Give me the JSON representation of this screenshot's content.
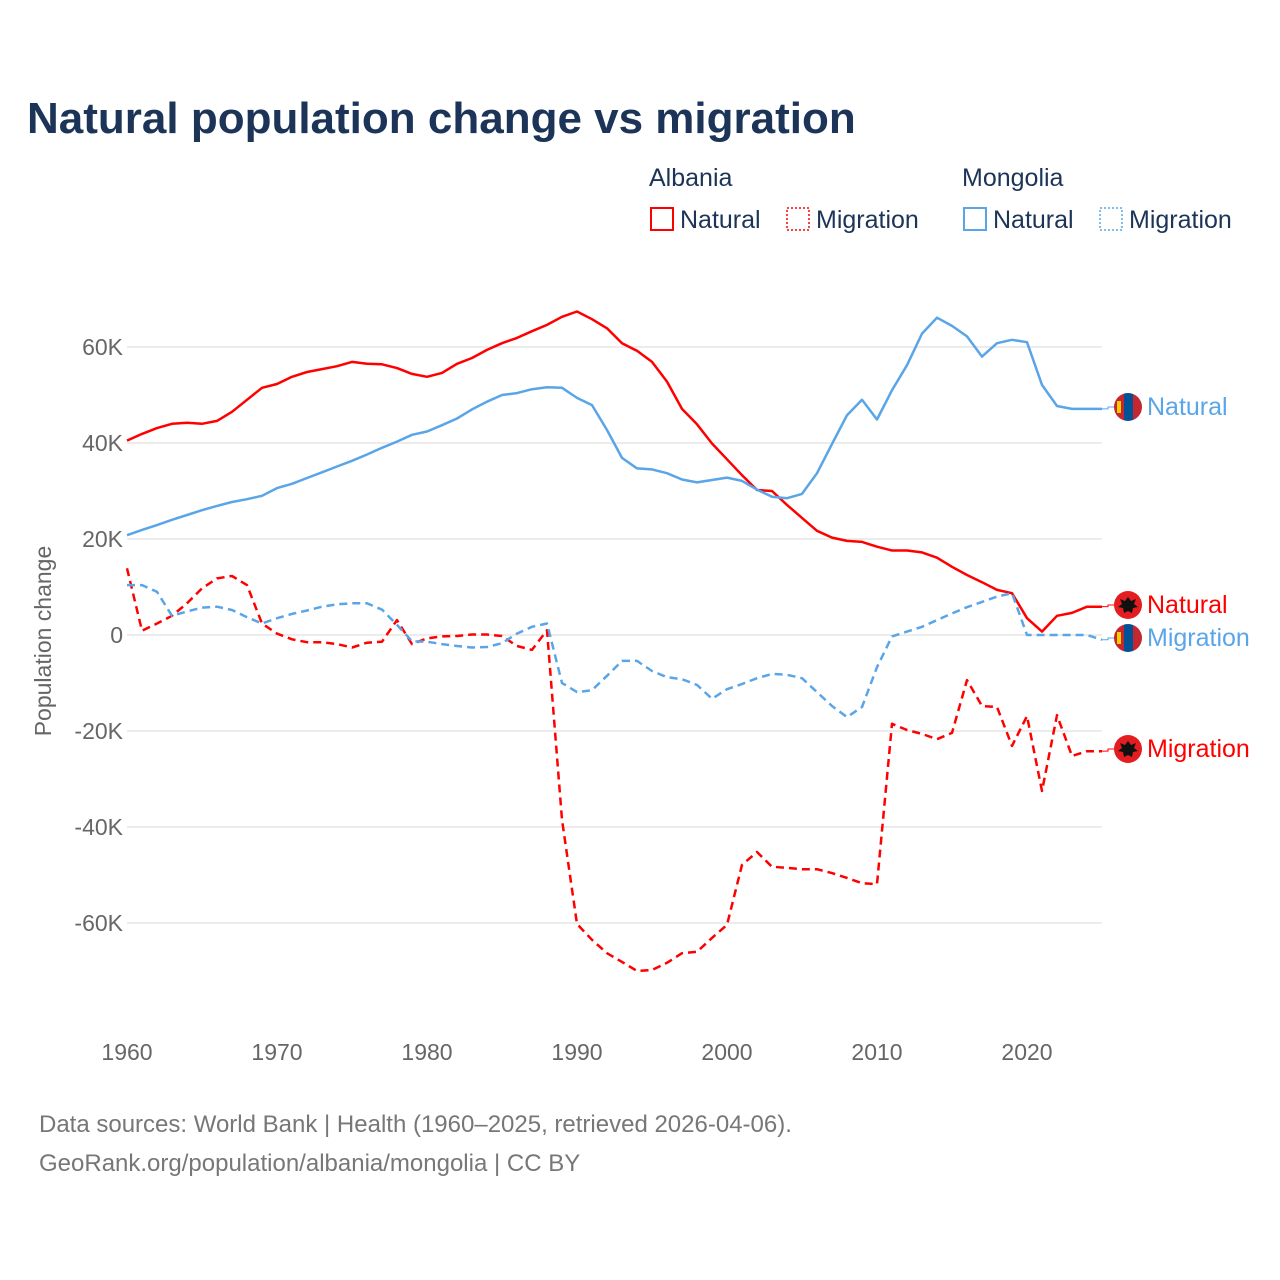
{
  "title": "Natural population change vs migration",
  "legend": {
    "groups": [
      {
        "country": "Albania",
        "natural": "Natural",
        "migration": "Migration",
        "color": "#ff0000"
      },
      {
        "country": "Mongolia",
        "natural": "Natural",
        "migration": "Migration",
        "color": "#5aa5e8"
      }
    ]
  },
  "footer": {
    "line1": "Data sources: World Bank | Health (1960–2025, retrieved 2026-04-06).",
    "line2": "GeoRank.org/population/albania/mongolia | CC BY"
  },
  "chart_data": {
    "type": "line",
    "title": "Natural population change vs migration",
    "xlabel": "",
    "ylabel": "Population change",
    "xlim": [
      1960,
      2025
    ],
    "ylim": [
      -80000,
      75000
    ],
    "x_ticks": [
      "1960",
      "1970",
      "1980",
      "1990",
      "2000",
      "2010",
      "2020"
    ],
    "y_ticks": [
      {
        "value": 60000,
        "label": "60K"
      },
      {
        "value": 40000,
        "label": "40K"
      },
      {
        "value": 20000,
        "label": "20K"
      },
      {
        "value": 0,
        "label": "0"
      },
      {
        "value": -20000,
        "label": "-20K"
      },
      {
        "value": -40000,
        "label": "-40K"
      },
      {
        "value": -60000,
        "label": "-60K"
      }
    ],
    "grid": true,
    "start_year": 1960,
    "series": [
      {
        "name": "Albania Natural",
        "end_label": "Natural",
        "color": "#ff0000",
        "dash": false,
        "flag": "albania",
        "values_k": [
          40.5,
          41.9,
          43.1,
          44.0,
          44.2,
          44.0,
          44.6,
          46.5,
          49.0,
          51.5,
          52.3,
          53.8,
          54.8,
          55.4,
          56.0,
          56.9,
          56.5,
          56.4,
          55.6,
          54.4,
          53.8,
          54.6,
          56.5,
          57.7,
          59.4,
          60.8,
          61.9,
          63.3,
          64.6,
          66.3,
          67.4,
          65.8,
          63.9,
          60.8,
          59.2,
          56.9,
          52.8,
          47.1,
          43.9,
          39.9,
          36.6,
          33.3,
          30.2,
          30.0,
          27.1,
          24.4,
          21.7,
          20.3,
          19.6,
          19.4,
          18.4,
          17.6,
          17.6,
          17.2,
          16.1,
          14.2,
          12.5,
          11.0,
          9.4,
          8.7,
          3.5,
          0.7,
          4.0,
          4.6,
          5.9,
          5.9
        ]
      },
      {
        "name": "Albania Migration",
        "end_label": "Migration",
        "color": "#ff0000",
        "dash": true,
        "flag": "albania",
        "values_k": [
          13.9,
          0.9,
          2.4,
          4.0,
          6.6,
          9.7,
          11.8,
          12.3,
          10.4,
          2.4,
          0.3,
          -0.9,
          -1.5,
          -1.5,
          -1.9,
          -2.6,
          -1.6,
          -1.4,
          3.1,
          -1.9,
          -0.7,
          -0.3,
          -0.2,
          0.1,
          0.1,
          -0.2,
          -2.3,
          -3.1,
          1.0,
          -38.5,
          -60.2,
          -63.5,
          -66.3,
          -68.1,
          -70.0,
          -69.8,
          -68.3,
          -66.3,
          -66.0,
          -63.1,
          -60.4,
          -47.9,
          -45.2,
          -48.3,
          -48.5,
          -48.8,
          -48.8,
          -49.6,
          -50.6,
          -51.7,
          -51.9,
          -18.5,
          -19.8,
          -20.6,
          -21.7,
          -20.4,
          -9.4,
          -14.8,
          -15.0,
          -23.1,
          -16.9,
          -32.5,
          -16.7,
          -25.2,
          -24.2,
          -24.2
        ]
      },
      {
        "name": "Mongolia Natural",
        "end_label": "Natural",
        "color": "#5aa5e8",
        "dash": false,
        "flag": "mongolia",
        "values_k": [
          20.8,
          21.9,
          22.9,
          24.0,
          25.0,
          26.0,
          26.9,
          27.7,
          28.3,
          29.0,
          30.6,
          31.5,
          32.7,
          33.9,
          35.1,
          36.3,
          37.6,
          39.0,
          40.3,
          41.7,
          42.4,
          43.7,
          45.1,
          47.0,
          48.6,
          50.0,
          50.4,
          51.2,
          51.6,
          51.5,
          49.4,
          47.9,
          42.7,
          36.9,
          34.7,
          34.5,
          33.7,
          32.4,
          31.8,
          32.3,
          32.8,
          32.1,
          30.3,
          28.8,
          28.5,
          29.4,
          33.7,
          39.8,
          45.8,
          49.0,
          44.9,
          51.0,
          56.2,
          62.8,
          66.1,
          64.4,
          62.2,
          58.0,
          60.8,
          61.5,
          61.0,
          52.1,
          47.7,
          47.1,
          47.1,
          47.1
        ]
      },
      {
        "name": "Mongolia Migration",
        "end_label": "Migration",
        "color": "#5aa5e8",
        "dash": true,
        "flag": "mongolia",
        "values_k": [
          10.4,
          10.4,
          9.0,
          4.0,
          4.9,
          5.7,
          5.9,
          5.2,
          3.7,
          2.4,
          3.5,
          4.4,
          5.1,
          5.9,
          6.4,
          6.6,
          6.6,
          5.3,
          2.1,
          -1.3,
          -1.4,
          -1.9,
          -2.3,
          -2.6,
          -2.5,
          -1.7,
          0.3,
          1.7,
          2.4,
          -10.0,
          -11.9,
          -11.5,
          -8.5,
          -5.4,
          -5.4,
          -7.5,
          -8.8,
          -9.2,
          -10.4,
          -13.3,
          -11.3,
          -10.2,
          -9.0,
          -8.1,
          -8.3,
          -9.0,
          -11.9,
          -14.8,
          -17.1,
          -15.0,
          -6.7,
          -0.3,
          0.7,
          1.7,
          3.1,
          4.5,
          5.8,
          6.9,
          8.0,
          8.7,
          0.0,
          0.0,
          0.0,
          0.0,
          0.0,
          -1.0
        ]
      }
    ]
  }
}
